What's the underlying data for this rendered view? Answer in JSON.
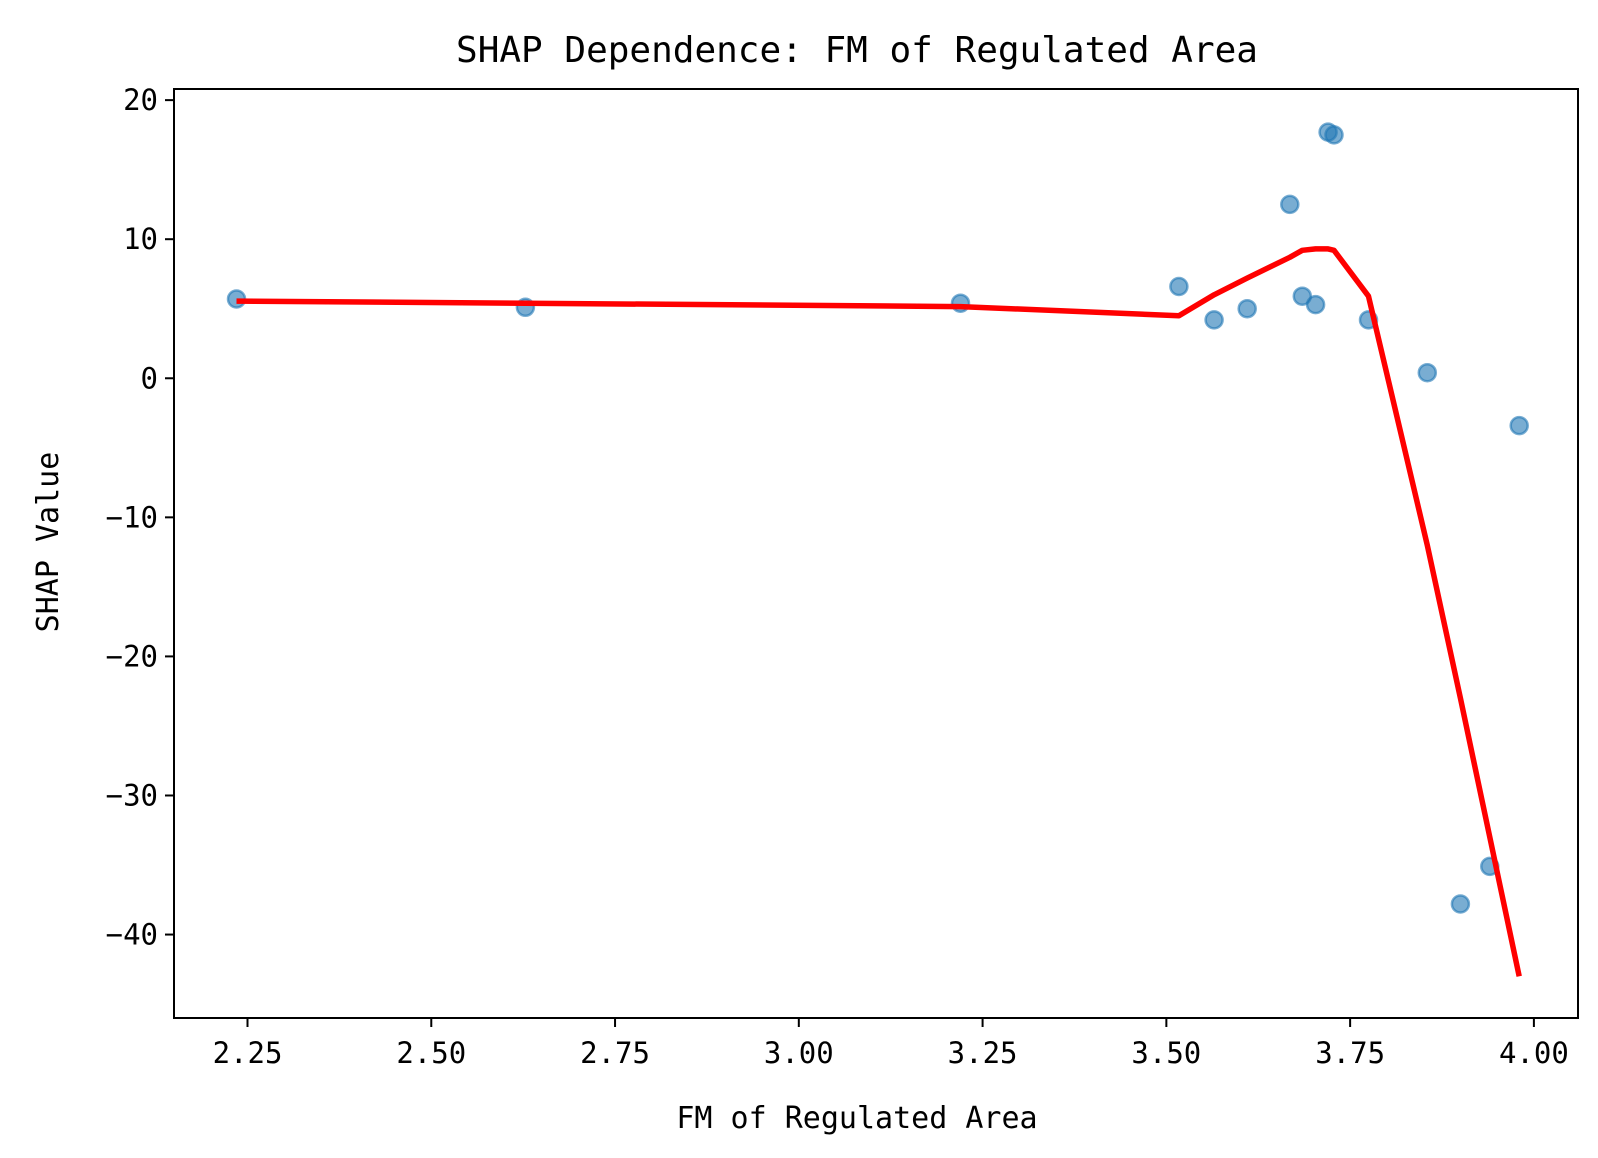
{
  "chart_data": {
    "type": "scatter",
    "title": "SHAP Dependence: FM of Regulated Area",
    "xlabel": "FM of Regulated Area",
    "ylabel": "SHAP Value",
    "xlim": [
      2.15,
      4.06
    ],
    "ylim": [
      -46,
      20.8
    ],
    "xticks": [
      2.25,
      2.5,
      2.75,
      3.0,
      3.25,
      3.5,
      3.75,
      4.0
    ],
    "xtick_labels": [
      "2.25",
      "2.50",
      "2.75",
      "3.00",
      "3.25",
      "3.50",
      "3.75",
      "4.00"
    ],
    "yticks": [
      20,
      10,
      0,
      -10,
      -20,
      -30,
      -40
    ],
    "ytick_labels": [
      "20",
      "10",
      "0",
      "−10",
      "−20",
      "−30",
      "−40"
    ],
    "grid": false,
    "series": [
      {
        "kind": "scatter",
        "color": "#1f77b4",
        "alpha": 0.6,
        "points": [
          {
            "x": 2.235,
            "y": 5.7
          },
          {
            "x": 2.628,
            "y": 5.1
          },
          {
            "x": 3.22,
            "y": 5.4
          },
          {
            "x": 3.517,
            "y": 6.6
          },
          {
            "x": 3.565,
            "y": 4.2
          },
          {
            "x": 3.61,
            "y": 5.0
          },
          {
            "x": 3.668,
            "y": 12.5
          },
          {
            "x": 3.685,
            "y": 5.9
          },
          {
            "x": 3.703,
            "y": 5.3
          },
          {
            "x": 3.72,
            "y": 17.7
          },
          {
            "x": 3.728,
            "y": 17.5
          },
          {
            "x": 3.775,
            "y": 4.2
          },
          {
            "x": 3.855,
            "y": 0.4
          },
          {
            "x": 3.9,
            "y": -37.8
          },
          {
            "x": 3.94,
            "y": -35.1
          },
          {
            "x": 3.98,
            "y": -3.4
          }
        ]
      },
      {
        "kind": "line",
        "color": "#ff0000",
        "points": [
          {
            "x": 2.235,
            "y": 5.55
          },
          {
            "x": 2.628,
            "y": 5.4
          },
          {
            "x": 3.22,
            "y": 5.15
          },
          {
            "x": 3.517,
            "y": 4.5
          },
          {
            "x": 3.565,
            "y": 6.0
          },
          {
            "x": 3.61,
            "y": 7.2
          },
          {
            "x": 3.668,
            "y": 8.7
          },
          {
            "x": 3.685,
            "y": 9.2
          },
          {
            "x": 3.703,
            "y": 9.3
          },
          {
            "x": 3.72,
            "y": 9.3
          },
          {
            "x": 3.728,
            "y": 9.2
          },
          {
            "x": 3.775,
            "y": 5.9
          },
          {
            "x": 3.855,
            "y": -12.0
          },
          {
            "x": 3.9,
            "y": -23.0
          },
          {
            "x": 3.94,
            "y": -33.0
          },
          {
            "x": 3.98,
            "y": -43.0
          }
        ]
      }
    ]
  }
}
